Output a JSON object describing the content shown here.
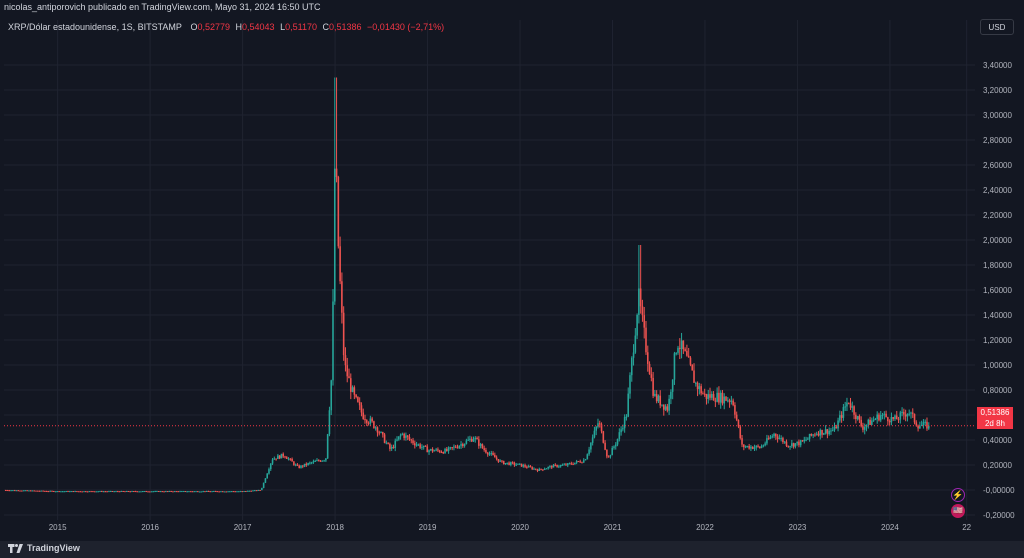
{
  "publication": "nicolas_antiporovich publicado en TradingView.com, Mayo 31, 2024 16:50 UTC",
  "legend": {
    "symbol": "XRP/Dólar estadounidense, 1S, BITSTAMP",
    "open_label": "O",
    "open": "0,52779",
    "high_label": "H",
    "high": "0,54043",
    "low_label": "L",
    "low": "0,51170",
    "close_label": "C",
    "close": "0,51386",
    "change": "−0,01430 (−2,71%)"
  },
  "currency_button": "USD",
  "last_price": {
    "value": "0,51386",
    "countdown": "2d 8h"
  },
  "brand": "TradingView",
  "badges": {
    "flash_icon": "⚡",
    "flag_icon": "🇺🇸"
  },
  "colors": {
    "up": "#26a69a",
    "down": "#ef5350",
    "background": "#131722",
    "grid": "#1f2330",
    "last_price": "#f23645"
  },
  "chart_data": {
    "type": "candlestick",
    "title": "XRP/Dólar estadounidense, 1S, BITSTAMP",
    "timeframe": "1S",
    "xlim": [
      2014.42,
      2024.92
    ],
    "ylim": [
      -0.24,
      3.6
    ],
    "y_ticks": [
      "3,40000",
      "3,20000",
      "3,00000",
      "2,80000",
      "2,60000",
      "2,40000",
      "2,20000",
      "2,00000",
      "1,80000",
      "1,60000",
      "1,40000",
      "1,20000",
      "1,00000",
      "0,80000",
      "0,60000",
      "0,40000",
      "0,20000",
      "-0,00000",
      "-0,20000"
    ],
    "y_tick_values": [
      3.4,
      3.2,
      3.0,
      2.8,
      2.6,
      2.4,
      2.2,
      2.0,
      1.8,
      1.6,
      1.4,
      1.2,
      1.0,
      0.8,
      0.6,
      0.4,
      0.2,
      0.0,
      -0.2
    ],
    "x_ticks": [
      "2015",
      "2016",
      "2017",
      "2018",
      "2019",
      "2020",
      "2021",
      "2022",
      "2023",
      "2024",
      "22"
    ],
    "x_tick_values": [
      2015,
      2016,
      2017,
      2018,
      2019,
      2020,
      2021,
      2022,
      2023,
      2024,
      2024.83
    ],
    "last_price_line": 0.51386,
    "price_path": [
      [
        2014.42,
        0.0
      ],
      [
        2015.0,
        -0.01
      ],
      [
        2016.0,
        -0.01
      ],
      [
        2017.0,
        -0.01
      ],
      [
        2017.2,
        0.0
      ],
      [
        2017.32,
        0.25
      ],
      [
        2017.45,
        0.28
      ],
      [
        2017.6,
        0.18
      ],
      [
        2017.75,
        0.22
      ],
      [
        2017.9,
        0.25
      ],
      [
        2017.97,
        1.0
      ],
      [
        2018.0,
        2.75
      ],
      [
        2018.04,
        1.85
      ],
      [
        2018.1,
        1.0
      ],
      [
        2018.2,
        0.75
      ],
      [
        2018.3,
        0.6
      ],
      [
        2018.45,
        0.5
      ],
      [
        2018.6,
        0.32
      ],
      [
        2018.72,
        0.45
      ],
      [
        2018.85,
        0.38
      ],
      [
        2019.0,
        0.32
      ],
      [
        2019.2,
        0.31
      ],
      [
        2019.4,
        0.38
      ],
      [
        2019.5,
        0.42
      ],
      [
        2019.6,
        0.33
      ],
      [
        2019.8,
        0.22
      ],
      [
        2020.0,
        0.2
      ],
      [
        2020.2,
        0.16
      ],
      [
        2020.35,
        0.19
      ],
      [
        2020.5,
        0.2
      ],
      [
        2020.7,
        0.24
      ],
      [
        2020.85,
        0.55
      ],
      [
        2020.95,
        0.25
      ],
      [
        2021.05,
        0.4
      ],
      [
        2021.15,
        0.6
      ],
      [
        2021.28,
        1.55
      ],
      [
        2021.35,
        1.2
      ],
      [
        2021.45,
        0.75
      ],
      [
        2021.6,
        0.65
      ],
      [
        2021.7,
        1.2
      ],
      [
        2021.8,
        1.05
      ],
      [
        2021.9,
        0.85
      ],
      [
        2022.0,
        0.75
      ],
      [
        2022.1,
        0.75
      ],
      [
        2022.3,
        0.72
      ],
      [
        2022.4,
        0.35
      ],
      [
        2022.6,
        0.34
      ],
      [
        2022.75,
        0.45
      ],
      [
        2022.9,
        0.36
      ],
      [
        2023.05,
        0.38
      ],
      [
        2023.2,
        0.46
      ],
      [
        2023.4,
        0.48
      ],
      [
        2023.55,
        0.72
      ],
      [
        2023.7,
        0.5
      ],
      [
        2023.9,
        0.6
      ],
      [
        2024.05,
        0.56
      ],
      [
        2024.2,
        0.63
      ],
      [
        2024.3,
        0.52
      ],
      [
        2024.42,
        0.51386
      ]
    ]
  }
}
